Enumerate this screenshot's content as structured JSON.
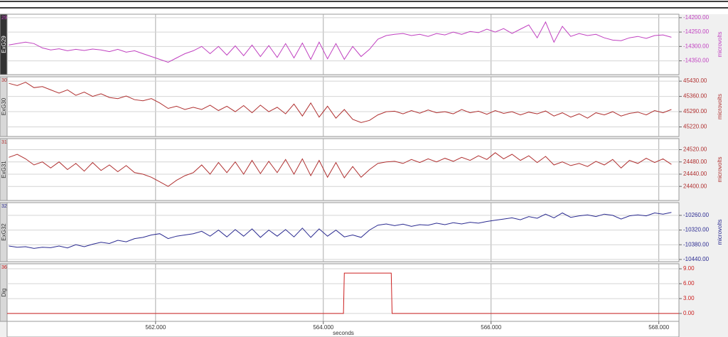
{
  "chart_data": {
    "type": "stacked_line",
    "xlabel": "seconds",
    "xlim": [
      560.23,
      568.24
    ],
    "xticks": [
      {
        "value": 562,
        "label": "562.000"
      },
      {
        "value": 564,
        "label": "564.000"
      },
      {
        "value": 566,
        "label": "566.000"
      },
      {
        "value": 568,
        "label": "568.000"
      }
    ],
    "grid": true,
    "x": [
      560.25,
      560.35,
      560.45,
      560.55,
      560.65,
      560.75,
      560.85,
      560.95,
      561.05,
      561.15,
      561.25,
      561.35,
      561.45,
      561.55,
      561.65,
      561.75,
      561.85,
      561.95,
      562.05,
      562.15,
      562.25,
      562.35,
      562.45,
      562.55,
      562.65,
      562.75,
      562.85,
      562.95,
      563.05,
      563.15,
      563.25,
      563.35,
      563.45,
      563.55,
      563.65,
      563.75,
      563.85,
      563.95,
      564.05,
      564.15,
      564.25,
      564.35,
      564.45,
      564.55,
      564.65,
      564.75,
      564.85,
      564.95,
      565.05,
      565.15,
      565.25,
      565.35,
      565.45,
      565.55,
      565.65,
      565.75,
      565.85,
      565.95,
      566.05,
      566.15,
      566.25,
      566.35,
      566.45,
      566.55,
      566.65,
      566.75,
      566.85,
      566.95,
      567.05,
      567.15,
      567.25,
      567.35,
      567.45,
      567.55,
      567.65,
      567.75,
      567.85,
      567.95,
      568.05,
      568.15
    ],
    "panels": [
      {
        "label": "29",
        "name": "ExG29",
        "ylabel": "microvolts",
        "color": "#c040c0",
        "ylim": [
          -14398,
          -14188
        ],
        "yticks": [
          {
            "value": -14200,
            "label": "-14200.00"
          },
          {
            "value": -14250,
            "label": "-14250.00"
          },
          {
            "value": -14300,
            "label": "-14300.00"
          },
          {
            "value": -14350,
            "label": "-14350.00"
          }
        ],
        "series": [
          {
            "values": [
              -14295,
              -14290,
              -14285,
              -14290,
              -14305,
              -14312,
              -14308,
              -14315,
              -14310,
              -14314,
              -14309,
              -14312,
              -14318,
              -14310,
              -14320,
              -14315,
              -14325,
              -14335,
              -14345,
              -14355,
              -14340,
              -14325,
              -14315,
              -14300,
              -14325,
              -14300,
              -14330,
              -14298,
              -14332,
              -14295,
              -14335,
              -14297,
              -14338,
              -14290,
              -14340,
              -14288,
              -14345,
              -14285,
              -14343,
              -14290,
              -14345,
              -14300,
              -14335,
              -14310,
              -14275,
              -14262,
              -14258,
              -14255,
              -14262,
              -14258,
              -14265,
              -14255,
              -14260,
              -14250,
              -14258,
              -14248,
              -14252,
              -14240,
              -14250,
              -14238,
              -14255,
              -14240,
              -14225,
              -14270,
              -14215,
              -14285,
              -14230,
              -14265,
              -14255,
              -14262,
              -14258,
              -14270,
              -14278,
              -14280,
              -14270,
              -14265,
              -14272,
              -14262,
              -14260,
              -14268
            ]
          }
        ]
      },
      {
        "label": "30",
        "name": "ExG30",
        "ylabel": "microvolts",
        "color": "#b03030",
        "ylim": [
          45176,
          45450
        ],
        "yticks": [
          {
            "value": 45430,
            "label": "45430.00"
          },
          {
            "value": 45360,
            "label": "45360.00"
          },
          {
            "value": 45290,
            "label": "45290.00"
          },
          {
            "value": 45220,
            "label": "45220.00"
          }
        ],
        "series": [
          {
            "values": [
              45420,
              45410,
              45425,
              45400,
              45405,
              45390,
              45375,
              45390,
              45365,
              45380,
              45360,
              45372,
              45355,
              45350,
              45362,
              45345,
              45340,
              45350,
              45330,
              45305,
              45315,
              45300,
              45310,
              45300,
              45320,
              45295,
              45315,
              45290,
              45318,
              45285,
              45320,
              45290,
              45310,
              45280,
              45325,
              45270,
              45330,
              45265,
              45315,
              45260,
              45300,
              45255,
              45240,
              45250,
              45275,
              45290,
              45292,
              45280,
              45295,
              45283,
              45298,
              45285,
              45290,
              45280,
              45300,
              45285,
              45292,
              45278,
              45295,
              45282,
              45290,
              45275,
              45288,
              45280,
              45293,
              45270,
              45285,
              45265,
              45280,
              45260,
              45285,
              45275,
              45290,
              45270,
              45282,
              45288,
              45275,
              45295,
              45285,
              45300
            ]
          }
        ]
      },
      {
        "label": "31",
        "name": "ExG31",
        "ylabel": "microvolts",
        "color": "#b03030",
        "ylim": [
          24354,
          24556
        ],
        "yticks": [
          {
            "value": 24520,
            "label": "24520.00"
          },
          {
            "value": 24480,
            "label": "24480.00"
          },
          {
            "value": 24440,
            "label": "24440.00"
          },
          {
            "value": 24400,
            "label": "24400.00"
          }
        ],
        "series": [
          {
            "values": [
              24495,
              24505,
              24490,
              24470,
              24480,
              24460,
              24480,
              24455,
              24475,
              24450,
              24478,
              24452,
              24470,
              24448,
              24468,
              24445,
              24440,
              24430,
              24415,
              24400,
              24420,
              24435,
              24445,
              24470,
              24440,
              24478,
              24445,
              24480,
              24440,
              24485,
              24442,
              24482,
              24445,
              24488,
              24440,
              24490,
              24435,
              24485,
              24430,
              24478,
              24428,
              24465,
              24430,
              24455,
              24475,
              24480,
              24482,
              24475,
              24488,
              24478,
              24490,
              24480,
              24492,
              24482,
              24495,
              24485,
              24500,
              24488,
              24510,
              24490,
              24505,
              24485,
              24500,
              24478,
              24498,
              24470,
              24480,
              24468,
              24475,
              24465,
              24482,
              24470,
              24488,
              24460,
              24485,
              24475,
              24492,
              24478,
              24490,
              24472
            ]
          }
        ]
      },
      {
        "label": "32",
        "name": "ExG32",
        "ylabel": "microvolts",
        "color": "#2a2a90",
        "ylim": [
          -10449,
          -10208
        ],
        "yticks": [
          {
            "value": -10260,
            "label": "-10260.00"
          },
          {
            "value": -10320,
            "label": "-10320.00"
          },
          {
            "value": -10380,
            "label": "-10380.00"
          },
          {
            "value": -10440,
            "label": "-10440.00"
          }
        ],
        "series": [
          {
            "values": [
              -10385,
              -10390,
              -10388,
              -10395,
              -10390,
              -10392,
              -10385,
              -10393,
              -10380,
              -10388,
              -10378,
              -10370,
              -10375,
              -10362,
              -10368,
              -10355,
              -10350,
              -10340,
              -10335,
              -10355,
              -10345,
              -10340,
              -10335,
              -10325,
              -10345,
              -10320,
              -10348,
              -10318,
              -10345,
              -10315,
              -10350,
              -10320,
              -10345,
              -10318,
              -10348,
              -10312,
              -10350,
              -10315,
              -10345,
              -10320,
              -10348,
              -10340,
              -10350,
              -10320,
              -10300,
              -10295,
              -10302,
              -10296,
              -10305,
              -10298,
              -10300,
              -10292,
              -10298,
              -10290,
              -10295,
              -10288,
              -10292,
              -10285,
              -10280,
              -10275,
              -10270,
              -10278,
              -10265,
              -10272,
              -10255,
              -10270,
              -10250,
              -10268,
              -10262,
              -10258,
              -10265,
              -10255,
              -10260,
              -10275,
              -10262,
              -10258,
              -10262,
              -10250,
              -10255,
              -10248
            ]
          }
        ]
      },
      {
        "label": "36",
        "name": "Dig",
        "color": "#cc2020",
        "ylim": [
          -1.59,
          10.01
        ],
        "yticks": [
          {
            "value": 9,
            "label": "9.00"
          },
          {
            "value": 6,
            "label": "6.00"
          },
          {
            "value": 3,
            "label": "3.00"
          },
          {
            "value": 0,
            "label": "0.00"
          }
        ],
        "series": [
          {
            "x": [
              560.23,
              564.24,
              564.25,
              564.81,
              564.82,
              568.24
            ],
            "values": [
              0,
              0,
              8.13,
              8.13,
              0,
              0
            ]
          }
        ]
      }
    ]
  }
}
